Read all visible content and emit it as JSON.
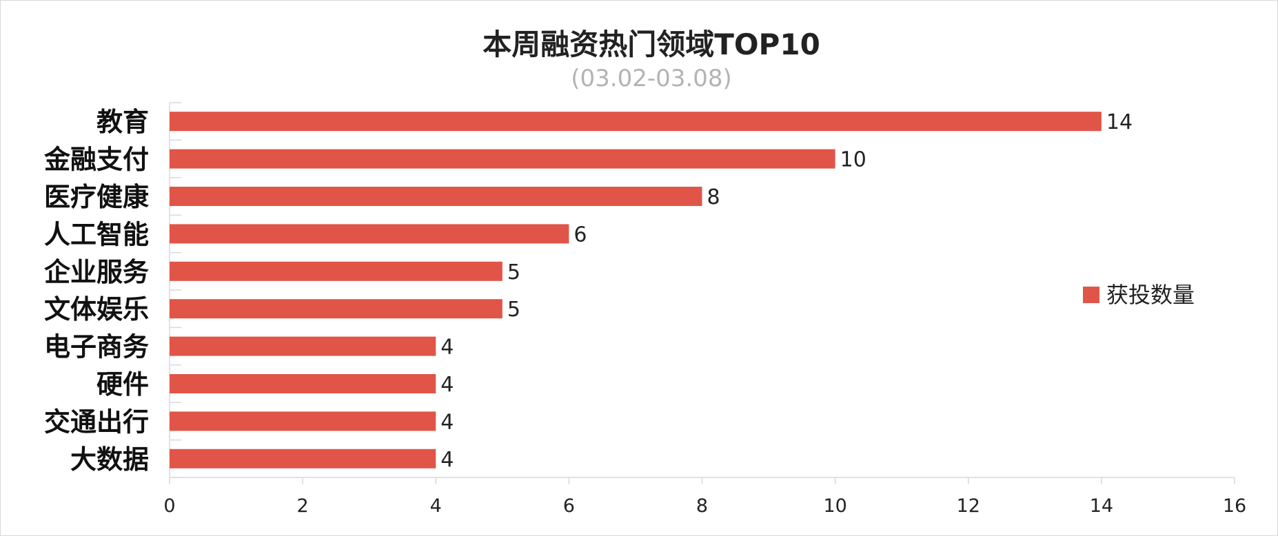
{
  "chart_data": {
    "type": "bar",
    "orientation": "horizontal",
    "title": "本周融资热门领域TOP10",
    "subtitle": "(03.02-03.08)",
    "categories": [
      "教育",
      "金融支付",
      "医疗健康",
      "人工智能",
      "企业服务",
      "文体娱乐",
      "电子商务",
      "硬件",
      "交通出行",
      "大数据"
    ],
    "series": [
      {
        "name": "获投数量",
        "values": [
          14,
          10,
          8,
          6,
          5,
          5,
          4,
          4,
          4,
          4
        ]
      }
    ],
    "xlim": [
      0,
      16
    ],
    "xticks": [
      0,
      2,
      4,
      6,
      8,
      10,
      12,
      14,
      16
    ],
    "data_labels": true,
    "grid": false,
    "legend_position": "right",
    "colors": {
      "bar": "#e05547"
    }
  }
}
